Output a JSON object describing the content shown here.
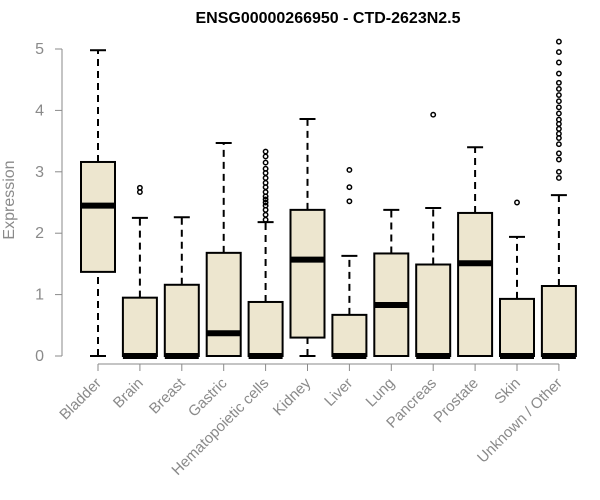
{
  "chart_data": {
    "type": "box",
    "title": "ENSG00000266950 - CTD-2623N2.5",
    "ylabel": "Expression",
    "xlabel": "",
    "ylim": [
      0,
      5
    ],
    "yticks": [
      0,
      1,
      2,
      3,
      4,
      5
    ],
    "grid": false,
    "box_fill": "#ede6cf",
    "box_stroke": "#000000",
    "categories": [
      "Bladder",
      "Brain",
      "Breast",
      "Gastric",
      "Hematopoietic cells",
      "Kidney",
      "Liver",
      "Lung",
      "Pancreas",
      "Prostate",
      "Skin",
      "Unknown / Other"
    ],
    "boxes": [
      {
        "category": "Bladder",
        "min": 0.0,
        "q1": 1.37,
        "median": 2.45,
        "q3": 3.16,
        "max": 4.98,
        "outliers": []
      },
      {
        "category": "Brain",
        "min": 0.0,
        "q1": 0.0,
        "median": 0.0,
        "q3": 0.95,
        "max": 2.25,
        "outliers": [
          2.67,
          2.74
        ]
      },
      {
        "category": "Breast",
        "min": 0.0,
        "q1": 0.0,
        "median": 0.0,
        "q3": 1.16,
        "max": 2.26,
        "outliers": []
      },
      {
        "category": "Gastric",
        "min": 0.0,
        "q1": 0.0,
        "median": 0.37,
        "q3": 1.68,
        "max": 3.47,
        "outliers": []
      },
      {
        "category": "Hematopoietic cells",
        "min": 0.0,
        "q1": 0.0,
        "median": 0.0,
        "q3": 0.88,
        "max": 2.18,
        "outliers": [
          2.22,
          2.3,
          2.38,
          2.45,
          2.5,
          2.55,
          2.6,
          2.67,
          2.75,
          2.82,
          2.9,
          2.98,
          3.05,
          3.15,
          3.25,
          3.33
        ]
      },
      {
        "category": "Kidney",
        "min": 0.0,
        "q1": 0.3,
        "median": 1.57,
        "q3": 2.38,
        "max": 3.86,
        "outliers": []
      },
      {
        "category": "Liver",
        "min": 0.0,
        "q1": 0.0,
        "median": 0.0,
        "q3": 0.67,
        "max": 1.63,
        "outliers": [
          2.52,
          2.75,
          3.03
        ]
      },
      {
        "category": "Lung",
        "min": 0.0,
        "q1": 0.0,
        "median": 0.83,
        "q3": 1.67,
        "max": 2.38,
        "outliers": []
      },
      {
        "category": "Pancreas",
        "min": 0.0,
        "q1": 0.0,
        "median": 0.0,
        "q3": 1.49,
        "max": 2.41,
        "outliers": [
          3.93
        ]
      },
      {
        "category": "Prostate",
        "min": 0.0,
        "q1": 0.0,
        "median": 1.51,
        "q3": 2.33,
        "max": 3.4,
        "outliers": []
      },
      {
        "category": "Skin",
        "min": 0.0,
        "q1": 0.0,
        "median": 0.0,
        "q3": 0.93,
        "max": 1.94,
        "outliers": [
          2.5
        ]
      },
      {
        "category": "Unknown / Other",
        "min": 0.0,
        "q1": 0.0,
        "median": 0.0,
        "q3": 1.14,
        "max": 2.62,
        "outliers": [
          2.9,
          3.0,
          3.2,
          3.3,
          3.45,
          3.55,
          3.62,
          3.7,
          3.78,
          3.85,
          3.95,
          4.05,
          4.15,
          4.25,
          4.35,
          4.45,
          4.6,
          4.78,
          4.95,
          5.12
        ]
      }
    ]
  }
}
